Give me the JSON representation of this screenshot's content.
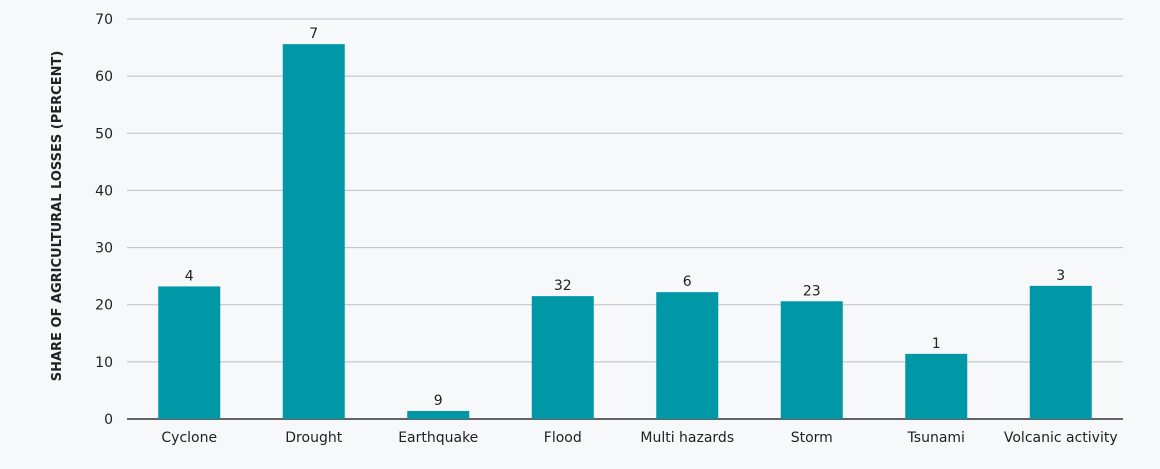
{
  "chart_data": {
    "type": "bar",
    "title": "",
    "xlabel": "",
    "ylabel": "SHARE OF AGRICULTURAL LOSSES (PERCENT)",
    "ylim": [
      0,
      70
    ],
    "yticks": [
      "0",
      "10",
      "20",
      "30",
      "40",
      "50",
      "60",
      "70"
    ],
    "grid": true,
    "categories": [
      "Cyclone",
      "Drought",
      "Earthquake",
      "Flood",
      "Multi hazards",
      "Storm",
      "Tsunami",
      "Volcanic activity"
    ],
    "values": [
      23.2,
      65.6,
      1.4,
      21.5,
      22.2,
      20.6,
      11.4,
      23.3
    ],
    "data_labels": [
      "4",
      "7",
      "9",
      "32",
      "6",
      "23",
      "1",
      "3"
    ],
    "bar_color": "#0097a7"
  }
}
